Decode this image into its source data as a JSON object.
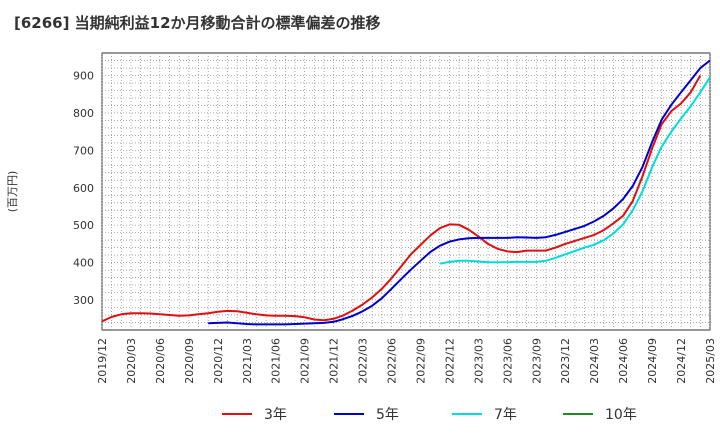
{
  "chart_data": {
    "type": "line",
    "title": "[6266]  当期純利益12か月移動合計の標準偏差の推移",
    "ylabel": "(百万円)",
    "xlabel": "",
    "ylim": [
      220,
      960
    ],
    "yticks": [
      300,
      400,
      500,
      600,
      700,
      800,
      900
    ],
    "xlim": [
      "2019-12",
      "2025-03"
    ],
    "xticks": [
      "2019/12",
      "2020/03",
      "2020/06",
      "2020/09",
      "2020/12",
      "2021/03",
      "2021/06",
      "2021/09",
      "2021/12",
      "2022/03",
      "2022/06",
      "2022/09",
      "2022/12",
      "2023/03",
      "2023/06",
      "2023/09",
      "2023/12",
      "2024/03",
      "2024/06",
      "2024/09",
      "2024/12",
      "2025/03"
    ],
    "grid": true,
    "legend_position": "bottom",
    "series": [
      {
        "name": "3年",
        "color": "#dd1111",
        "points": [
          [
            "2019-12",
            243
          ],
          [
            "2020-01",
            255
          ],
          [
            "2020-02",
            262
          ],
          [
            "2020-03",
            265
          ],
          [
            "2020-04",
            265
          ],
          [
            "2020-05",
            264
          ],
          [
            "2020-06",
            262
          ],
          [
            "2020-07",
            260
          ],
          [
            "2020-08",
            258
          ],
          [
            "2020-09",
            259
          ],
          [
            "2020-10",
            262
          ],
          [
            "2020-11",
            265
          ],
          [
            "2020-12",
            269
          ],
          [
            "2021-01",
            271
          ],
          [
            "2021-02",
            270
          ],
          [
            "2021-03",
            266
          ],
          [
            "2021-04",
            262
          ],
          [
            "2021-05",
            259
          ],
          [
            "2021-06",
            258
          ],
          [
            "2021-07",
            258
          ],
          [
            "2021-08",
            257
          ],
          [
            "2021-09",
            254
          ],
          [
            "2021-10",
            248
          ],
          [
            "2021-11",
            246
          ],
          [
            "2021-12",
            250
          ],
          [
            "2022-01",
            259
          ],
          [
            "2022-02",
            272
          ],
          [
            "2022-03",
            288
          ],
          [
            "2022-04",
            307
          ],
          [
            "2022-05",
            330
          ],
          [
            "2022-06",
            358
          ],
          [
            "2022-07",
            390
          ],
          [
            "2022-08",
            422
          ],
          [
            "2022-09",
            447
          ],
          [
            "2022-10",
            472
          ],
          [
            "2022-11",
            492
          ],
          [
            "2022-12",
            502
          ],
          [
            "2023-01",
            501
          ],
          [
            "2023-02",
            488
          ],
          [
            "2023-03",
            470
          ],
          [
            "2023-04",
            450
          ],
          [
            "2023-05",
            437
          ],
          [
            "2023-06",
            430
          ],
          [
            "2023-07",
            428
          ],
          [
            "2023-08",
            432
          ],
          [
            "2023-09",
            432
          ],
          [
            "2023-10",
            432
          ],
          [
            "2023-11",
            440
          ],
          [
            "2023-12",
            450
          ],
          [
            "2024-01",
            458
          ],
          [
            "2024-02",
            466
          ],
          [
            "2024-03",
            474
          ],
          [
            "2024-04",
            487
          ],
          [
            "2024-05",
            505
          ],
          [
            "2024-06",
            525
          ],
          [
            "2024-07",
            565
          ],
          [
            "2024-08",
            630
          ],
          [
            "2024-09",
            705
          ],
          [
            "2024-10",
            770
          ],
          [
            "2024-11",
            805
          ],
          [
            "2024-12",
            825
          ],
          [
            "2025-01",
            855
          ],
          [
            "2025-02",
            900
          ]
        ]
      },
      {
        "name": "5年",
        "color": "#0000cc",
        "points": [
          [
            "2020-11",
            238
          ],
          [
            "2020-12",
            239
          ],
          [
            "2021-01",
            240
          ],
          [
            "2021-02",
            238
          ],
          [
            "2021-03",
            236
          ],
          [
            "2021-04",
            235
          ],
          [
            "2021-05",
            235
          ],
          [
            "2021-06",
            235
          ],
          [
            "2021-07",
            235
          ],
          [
            "2021-08",
            236
          ],
          [
            "2021-09",
            237
          ],
          [
            "2021-10",
            238
          ],
          [
            "2021-11",
            239
          ],
          [
            "2021-12",
            242
          ],
          [
            "2022-01",
            249
          ],
          [
            "2022-02",
            258
          ],
          [
            "2022-03",
            270
          ],
          [
            "2022-04",
            285
          ],
          [
            "2022-05",
            305
          ],
          [
            "2022-06",
            330
          ],
          [
            "2022-07",
            356
          ],
          [
            "2022-08",
            381
          ],
          [
            "2022-09",
            405
          ],
          [
            "2022-10",
            428
          ],
          [
            "2022-11",
            445
          ],
          [
            "2022-12",
            456
          ],
          [
            "2023-01",
            462
          ],
          [
            "2023-02",
            465
          ],
          [
            "2023-03",
            466
          ],
          [
            "2023-04",
            466
          ],
          [
            "2023-05",
            466
          ],
          [
            "2023-06",
            466
          ],
          [
            "2023-07",
            468
          ],
          [
            "2023-08",
            467
          ],
          [
            "2023-09",
            466
          ],
          [
            "2023-10",
            468
          ],
          [
            "2023-11",
            474
          ],
          [
            "2023-12",
            482
          ],
          [
            "2024-01",
            490
          ],
          [
            "2024-02",
            498
          ],
          [
            "2024-03",
            510
          ],
          [
            "2024-04",
            525
          ],
          [
            "2024-05",
            545
          ],
          [
            "2024-06",
            570
          ],
          [
            "2024-07",
            605
          ],
          [
            "2024-08",
            655
          ],
          [
            "2024-09",
            722
          ],
          [
            "2024-10",
            782
          ],
          [
            "2024-11",
            822
          ],
          [
            "2024-12",
            855
          ],
          [
            "2025-01",
            887
          ],
          [
            "2025-02",
            920
          ],
          [
            "2025-03",
            940
          ]
        ]
      },
      {
        "name": "7年",
        "color": "#00dddd",
        "points": [
          [
            "2022-11",
            397
          ],
          [
            "2022-12",
            402
          ],
          [
            "2023-01",
            405
          ],
          [
            "2023-02",
            405
          ],
          [
            "2023-03",
            403
          ],
          [
            "2023-04",
            401
          ],
          [
            "2023-05",
            401
          ],
          [
            "2023-06",
            401
          ],
          [
            "2023-07",
            402
          ],
          [
            "2023-08",
            402
          ],
          [
            "2023-09",
            402
          ],
          [
            "2023-10",
            405
          ],
          [
            "2023-11",
            413
          ],
          [
            "2023-12",
            422
          ],
          [
            "2024-01",
            431
          ],
          [
            "2024-02",
            440
          ],
          [
            "2024-03",
            448
          ],
          [
            "2024-04",
            460
          ],
          [
            "2024-05",
            478
          ],
          [
            "2024-06",
            502
          ],
          [
            "2024-07",
            540
          ],
          [
            "2024-08",
            590
          ],
          [
            "2024-09",
            655
          ],
          [
            "2024-10",
            710
          ],
          [
            "2024-11",
            750
          ],
          [
            "2024-12",
            785
          ],
          [
            "2025-01",
            818
          ],
          [
            "2025-02",
            855
          ],
          [
            "2025-03",
            895
          ]
        ]
      },
      {
        "name": "10年",
        "color": "#228822",
        "points": []
      }
    ]
  }
}
